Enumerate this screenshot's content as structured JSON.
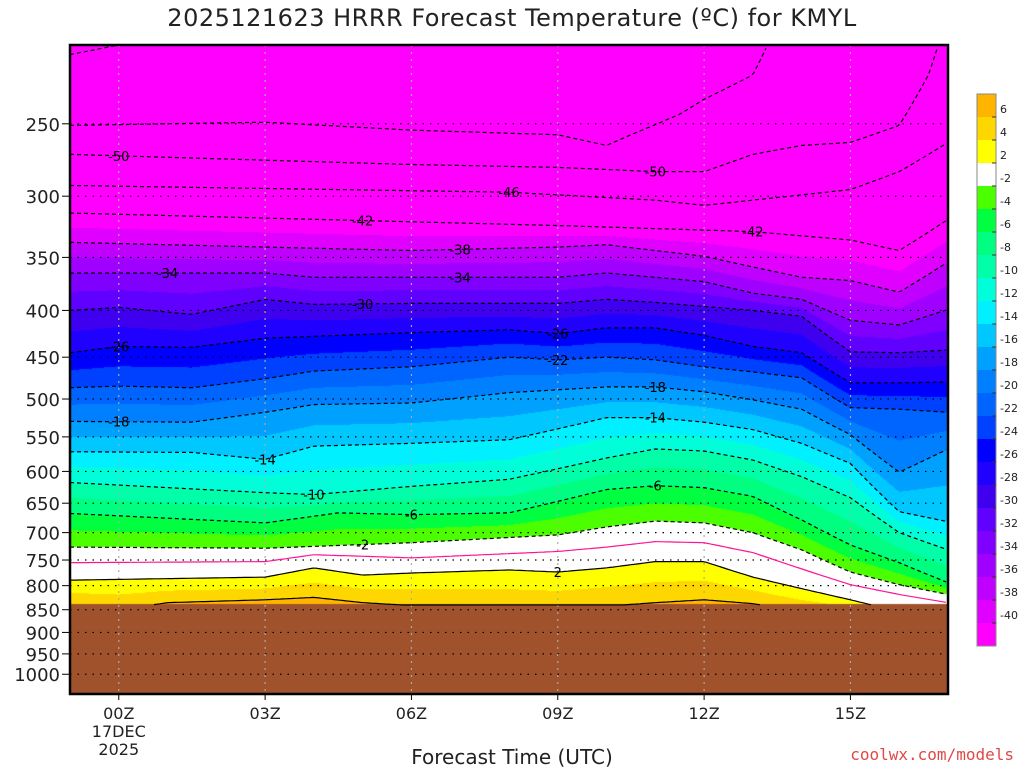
{
  "title": "2025121623 HRRR Forecast Temperature (ºC) for KMYL",
  "credit": "coolwx.com/models",
  "chart_data": {
    "type": "contour",
    "title": "2025121623 HRRR Forecast Temperature (ºC) for KMYL",
    "xlabel": "Forecast Time (UTC)",
    "ylabel": "",
    "x_range_hours": [
      -1,
      17
    ],
    "y_range_hPa": [
      205,
      1051
    ],
    "y_scale": "log",
    "y_ticks": [
      250,
      300,
      350,
      400,
      450,
      500,
      550,
      600,
      650,
      700,
      750,
      800,
      850,
      900,
      950,
      1000
    ],
    "y_tick_labels": [
      "250",
      "300",
      "350",
      "400",
      "450",
      "500",
      "550",
      "600",
      "650",
      "700",
      "750",
      "800",
      "850",
      "900",
      "950",
      "1000"
    ],
    "x_ticks": [
      0,
      3,
      6,
      9,
      12,
      15
    ],
    "x_tick_labels": [
      "00Z",
      "03Z",
      "06Z",
      "09Z",
      "12Z",
      "15Z"
    ],
    "x_date_lines": [
      "17DEC",
      "2025"
    ],
    "surface_pressure_hPa": 838,
    "ground_color": "#a0522d",
    "isotherms": [
      {
        "level": 6,
        "style": "solid",
        "points": [
          [
            -1,
            841
          ],
          [
            0,
            850
          ],
          [
            1,
            835
          ],
          [
            3,
            829
          ],
          [
            4,
            824
          ],
          [
            5,
            835
          ],
          [
            6,
            841
          ],
          [
            9,
            850
          ],
          [
            11,
            835
          ],
          [
            12,
            829
          ],
          [
            13,
            837
          ],
          [
            14,
            854
          ],
          [
            17,
            870
          ]
        ]
      },
      {
        "level": 2,
        "style": "solid",
        "points": [
          [
            -1,
            789
          ],
          [
            3,
            783
          ],
          [
            4,
            765
          ],
          [
            5,
            779
          ],
          [
            6,
            775
          ],
          [
            8,
            769
          ],
          [
            9,
            773
          ],
          [
            10,
            765
          ],
          [
            11,
            753
          ],
          [
            12,
            753
          ],
          [
            13,
            783
          ],
          [
            15,
            829
          ],
          [
            16,
            854
          ],
          [
            17,
            870
          ]
        ]
      },
      {
        "level": 0,
        "style": "pink",
        "points": [
          [
            -1,
            755
          ],
          [
            3,
            753
          ],
          [
            4,
            740
          ],
          [
            6,
            746
          ],
          [
            9,
            734
          ],
          [
            10,
            726
          ],
          [
            11,
            716
          ],
          [
            12,
            718
          ],
          [
            13,
            736
          ],
          [
            15,
            798
          ],
          [
            16,
            818
          ],
          [
            17,
            835
          ]
        ]
      },
      {
        "level": -2,
        "style": "dashed",
        "points": [
          [
            -1,
            726
          ],
          [
            3,
            728
          ],
          [
            6,
            718
          ],
          [
            9,
            704
          ],
          [
            10,
            690
          ],
          [
            11,
            680
          ],
          [
            12,
            683
          ],
          [
            13,
            700
          ],
          [
            14,
            731
          ],
          [
            15,
            773
          ],
          [
            16,
            798
          ],
          [
            17,
            818
          ]
        ]
      },
      {
        "level": -6,
        "style": "dashed",
        "points": [
          [
            -1,
            667
          ],
          [
            3,
            683
          ],
          [
            4.5,
            666
          ],
          [
            6,
            669
          ],
          [
            8,
            666
          ],
          [
            10,
            628
          ],
          [
            11,
            622
          ],
          [
            12,
            625
          ],
          [
            13,
            639
          ],
          [
            14,
            678
          ],
          [
            15,
            722
          ],
          [
            16,
            755
          ],
          [
            17,
            794
          ]
        ]
      },
      {
        "level": -10,
        "style": "dashed",
        "points": [
          [
            -1,
            617
          ],
          [
            3,
            633
          ],
          [
            4,
            636
          ],
          [
            6,
            623
          ],
          [
            8,
            612
          ],
          [
            10,
            580
          ],
          [
            11,
            567
          ],
          [
            12,
            570
          ],
          [
            13,
            583
          ],
          [
            14,
            608
          ],
          [
            15,
            641
          ],
          [
            16,
            700
          ],
          [
            17,
            731
          ]
        ]
      },
      {
        "level": -14,
        "style": "dashed",
        "points": [
          [
            -1,
            571
          ],
          [
            1.5,
            572
          ],
          [
            3,
            582
          ],
          [
            4,
            563
          ],
          [
            6,
            559
          ],
          [
            8,
            554
          ],
          [
            10,
            524
          ],
          [
            11,
            524
          ],
          [
            12,
            530
          ],
          [
            13,
            540
          ],
          [
            14,
            559
          ],
          [
            15,
            588
          ],
          [
            16,
            664
          ],
          [
            17,
            681
          ]
        ]
      },
      {
        "level": -18,
        "style": "dashed",
        "points": [
          [
            -1,
            529
          ],
          [
            1.5,
            530
          ],
          [
            3,
            517
          ],
          [
            4,
            507
          ],
          [
            6,
            505
          ],
          [
            8,
            492
          ],
          [
            10,
            485
          ],
          [
            11,
            485
          ],
          [
            12,
            491
          ],
          [
            13,
            501
          ],
          [
            14,
            513
          ],
          [
            15,
            547
          ],
          [
            16,
            601
          ],
          [
            17,
            567
          ]
        ]
      },
      {
        "level": -22,
        "style": "dashed",
        "points": [
          [
            -1,
            486
          ],
          [
            0,
            484
          ],
          [
            1.5,
            486
          ],
          [
            3,
            475
          ],
          [
            4,
            466
          ],
          [
            6,
            461
          ],
          [
            8,
            450
          ],
          [
            9,
            453
          ],
          [
            10,
            450
          ],
          [
            11,
            453
          ],
          [
            12,
            461
          ],
          [
            13,
            467
          ],
          [
            14,
            474
          ],
          [
            15,
            511
          ],
          [
            16,
            513
          ],
          [
            17,
            517
          ]
        ]
      },
      {
        "level": -26,
        "style": "dashed",
        "points": [
          [
            -1,
            445
          ],
          [
            0,
            438
          ],
          [
            1.5,
            439
          ],
          [
            3,
            429
          ],
          [
            6,
            423
          ],
          [
            8,
            420
          ],
          [
            9,
            424
          ],
          [
            10,
            418
          ],
          [
            11,
            418
          ],
          [
            12,
            426
          ],
          [
            13,
            438
          ],
          [
            14,
            445
          ],
          [
            15,
            480
          ],
          [
            16,
            480
          ],
          [
            17,
            479
          ]
        ]
      },
      {
        "level": -30,
        "style": "dashed",
        "points": [
          [
            -1,
            400
          ],
          [
            0,
            397
          ],
          [
            1.5,
            404
          ],
          [
            3,
            389
          ],
          [
            4,
            394
          ],
          [
            6,
            393
          ],
          [
            9,
            393
          ],
          [
            10,
            389
          ],
          [
            11,
            392
          ],
          [
            12,
            396
          ],
          [
            13,
            400
          ],
          [
            14,
            406
          ],
          [
            15,
            444
          ],
          [
            16,
            445
          ],
          [
            17,
            442
          ]
        ]
      },
      {
        "level": -34,
        "style": "dashed",
        "points": [
          [
            -1,
            364
          ],
          [
            3,
            364
          ],
          [
            4,
            368
          ],
          [
            9,
            368
          ],
          [
            10,
            364
          ],
          [
            12,
            372
          ],
          [
            13,
            383
          ],
          [
            14,
            389
          ],
          [
            15,
            410
          ],
          [
            16,
            415
          ],
          [
            17,
            399
          ]
        ]
      },
      {
        "level": -38,
        "style": "dashed",
        "points": [
          [
            -1,
            337
          ],
          [
            3,
            341
          ],
          [
            6,
            344
          ],
          [
            9,
            341
          ],
          [
            10,
            339
          ],
          [
            12,
            349
          ],
          [
            14,
            368
          ],
          [
            15,
            371
          ],
          [
            16,
            382
          ],
          [
            17,
            354
          ]
        ]
      },
      {
        "level": -42,
        "style": "dashed",
        "points": [
          [
            -1,
            313
          ],
          [
            5,
            319
          ],
          [
            9,
            323
          ],
          [
            13,
            328
          ],
          [
            15,
            335
          ],
          [
            16,
            344
          ],
          [
            17,
            318
          ]
        ]
      },
      {
        "level": -46,
        "style": "dashed",
        "points": [
          [
            -1,
            292
          ],
          [
            8,
            297
          ],
          [
            11,
            303
          ],
          [
            12,
            307
          ],
          [
            14,
            299
          ],
          [
            15,
            295
          ],
          [
            16,
            282
          ],
          [
            17,
            262
          ]
        ]
      },
      {
        "level": -50,
        "style": "dashed",
        "points": [
          [
            -1,
            270
          ],
          [
            3,
            274
          ],
          [
            6,
            277
          ],
          [
            9,
            279
          ],
          [
            11,
            282
          ],
          [
            12,
            282
          ],
          [
            13,
            270
          ],
          [
            14,
            264
          ],
          [
            15,
            262
          ],
          [
            16,
            251
          ],
          [
            16.6,
            221
          ],
          [
            16.8,
            205
          ]
        ]
      },
      {
        "level": -54,
        "style": "dashed",
        "points": [
          [
            -1,
            251
          ],
          [
            3,
            249
          ],
          [
            6,
            254
          ],
          [
            9,
            257
          ],
          [
            10,
            264
          ],
          [
            10.5,
            257
          ],
          [
            11.5,
            244
          ],
          [
            12,
            235
          ],
          [
            13,
            221
          ],
          [
            13.3,
            205
          ]
        ]
      },
      {
        "level": -58,
        "style": "dashed",
        "points": [
          [
            -1,
            210
          ],
          [
            0,
            205
          ]
        ]
      }
    ],
    "contour_labels": [
      {
        "text": "-50",
        "level": -50,
        "t": 0
      },
      {
        "text": "-50",
        "level": -50,
        "t": 11
      },
      {
        "text": "-46",
        "level": -46,
        "t": 8
      },
      {
        "text": "-42",
        "level": -42,
        "t": 5
      },
      {
        "text": "-42",
        "level": -42,
        "t": 13
      },
      {
        "text": "-38",
        "level": -38,
        "t": 7
      },
      {
        "text": "-34",
        "level": -34,
        "t": 1
      },
      {
        "text": "-34",
        "level": -34,
        "t": 7
      },
      {
        "text": "-30",
        "level": -30,
        "t": 5
      },
      {
        "text": "-26",
        "level": -26,
        "t": 0
      },
      {
        "text": "-26",
        "level": -26,
        "t": 9
      },
      {
        "text": "-22",
        "level": -22,
        "t": 9
      },
      {
        "text": "-18",
        "level": -18,
        "t": 0
      },
      {
        "text": "-18",
        "level": -18,
        "t": 11
      },
      {
        "text": "-14",
        "level": -14,
        "t": 3
      },
      {
        "text": "-14",
        "level": -14,
        "t": 11
      },
      {
        "text": "-10",
        "level": -10,
        "t": 4
      },
      {
        "text": "-6",
        "level": -6,
        "t": 6
      },
      {
        "text": "-6",
        "level": -6,
        "t": 11
      },
      {
        "text": "-2",
        "level": -2,
        "t": 5
      },
      {
        "text": "2",
        "level": 2,
        "t": 9
      }
    ],
    "colorbar": {
      "colors": [
        "#ffb400",
        "#ffd700",
        "#ffff00",
        "#ffffff",
        "#4cff00",
        "#00ff40",
        "#00ff80",
        "#00ffa8",
        "#00ffd8",
        "#00f0ff",
        "#00c8ff",
        "#00a0ff",
        "#0080ff",
        "#0064ff",
        "#0040ff",
        "#0000ff",
        "#2000ff",
        "#4000f0",
        "#6000ff",
        "#8000ff",
        "#a000ff",
        "#c000ff",
        "#e000ff",
        "#ff00ff"
      ],
      "labels": [
        "6",
        "4",
        "2",
        "-2",
        "-4",
        "-6",
        "-8",
        "-10",
        "-12",
        "-14",
        "-16",
        "-18",
        "-20",
        "-22",
        "-24",
        "-26",
        "-28",
        "-30",
        "-32",
        "-34",
        "-36",
        "-38",
        "-40"
      ]
    }
  }
}
